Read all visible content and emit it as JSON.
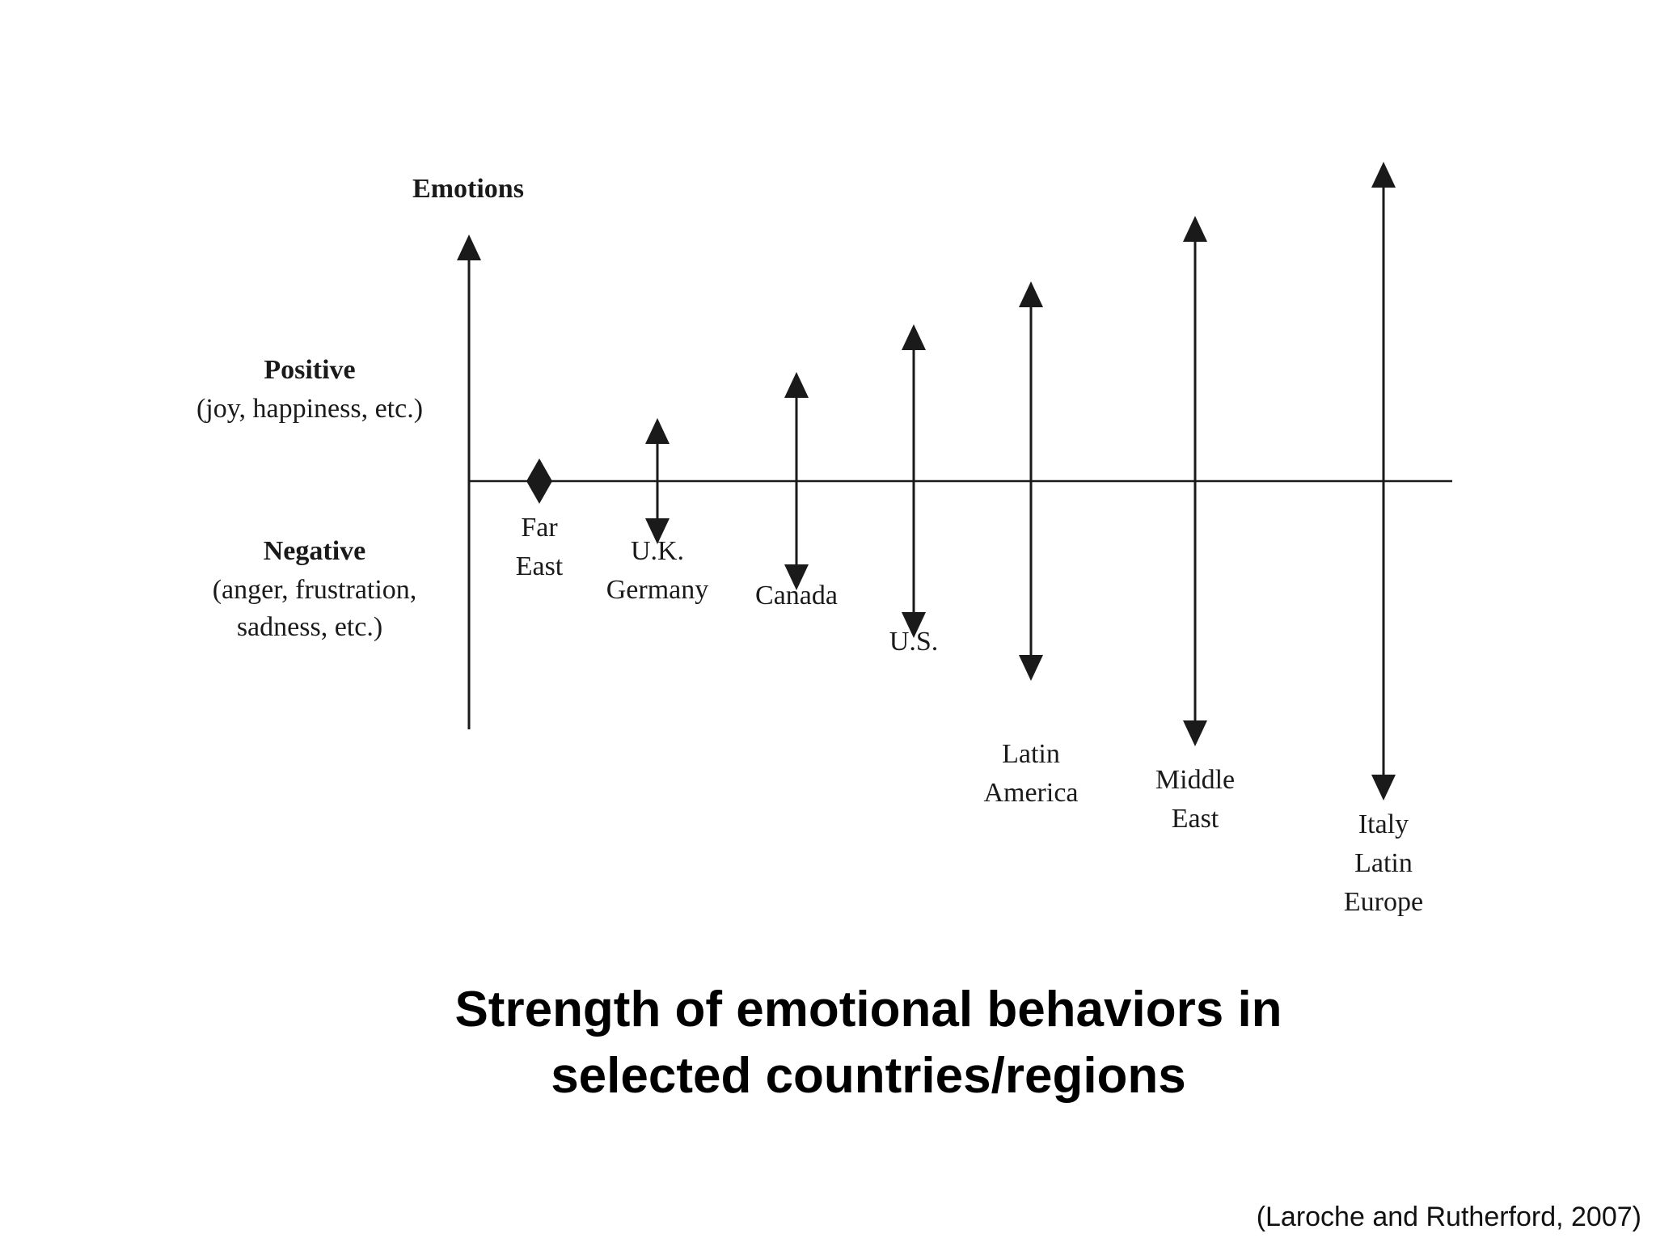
{
  "diagram": {
    "y_axis_title": "Emotions",
    "positive": {
      "title": "Positive",
      "examples": "(joy, happiness, etc.)"
    },
    "negative": {
      "title": "Negative",
      "lines": [
        "(anger, frustration,",
        "sadness, etc.)"
      ]
    },
    "regions": [
      {
        "label_lines": [
          "Far",
          "East"
        ],
        "marker": "diamond",
        "strength": 0
      },
      {
        "label_lines": [
          "U.K.",
          "Germany"
        ],
        "marker": "double-arrow",
        "strength": 1
      },
      {
        "label_lines": [
          "Canada"
        ],
        "marker": "double-arrow",
        "strength": 2
      },
      {
        "label_lines": [
          "U.S."
        ],
        "marker": "double-arrow",
        "strength": 3
      },
      {
        "label_lines": [
          "Latin",
          "America"
        ],
        "marker": "double-arrow",
        "strength": 4
      },
      {
        "label_lines": [
          "Middle",
          "East"
        ],
        "marker": "double-arrow",
        "strength": 5
      },
      {
        "label_lines": [
          "Italy",
          "Latin",
          "Europe"
        ],
        "marker": "double-arrow",
        "strength": 6
      }
    ]
  },
  "caption": {
    "line1": "Strength of emotional behaviors in",
    "line2": "selected countries/regions"
  },
  "citation": "(Laroche and Rutherford, 2007)",
  "colors": {
    "ink": "#1a1a1a",
    "background": "#ffffff"
  }
}
